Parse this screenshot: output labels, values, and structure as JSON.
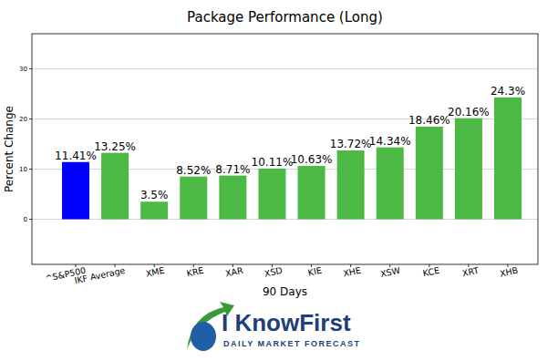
{
  "chart_data": {
    "type": "bar",
    "title": "Package Performance (Long)",
    "x_label": "90 Days",
    "y_label": "Percent Change",
    "categories": [
      "^S&P500",
      "IKF Average",
      "XME",
      "KRE",
      "XAR",
      "XSD",
      "KIE",
      "XHE",
      "XSW",
      "KCE",
      "XRT",
      "XHB"
    ],
    "values": [
      11.41,
      13.25,
      3.5,
      8.52,
      8.71,
      10.11,
      10.63,
      13.72,
      14.34,
      18.46,
      20.16,
      24.3
    ],
    "value_labels": [
      "11.41%",
      "13.25%",
      "3.5%",
      "8.52%",
      "8.71%",
      "10.11%",
      "10.63%",
      "13.72%",
      "14.34%",
      "18.46%",
      "20.16%",
      "24.3%"
    ],
    "colors": [
      "#0000ff",
      "#4cb944",
      "#4cb944",
      "#4cb944",
      "#4cb944",
      "#4cb944",
      "#4cb944",
      "#4cb944",
      "#4cb944",
      "#4cb944",
      "#4cb944",
      "#4cb944"
    ],
    "ylim": [
      -9,
      37
    ],
    "yticks": [
      0,
      10,
      20,
      30
    ],
    "grid": true,
    "data_labels": true,
    "annotations": [
      "I KnowFirst",
      "DAILY MARKET FORECAST"
    ]
  }
}
